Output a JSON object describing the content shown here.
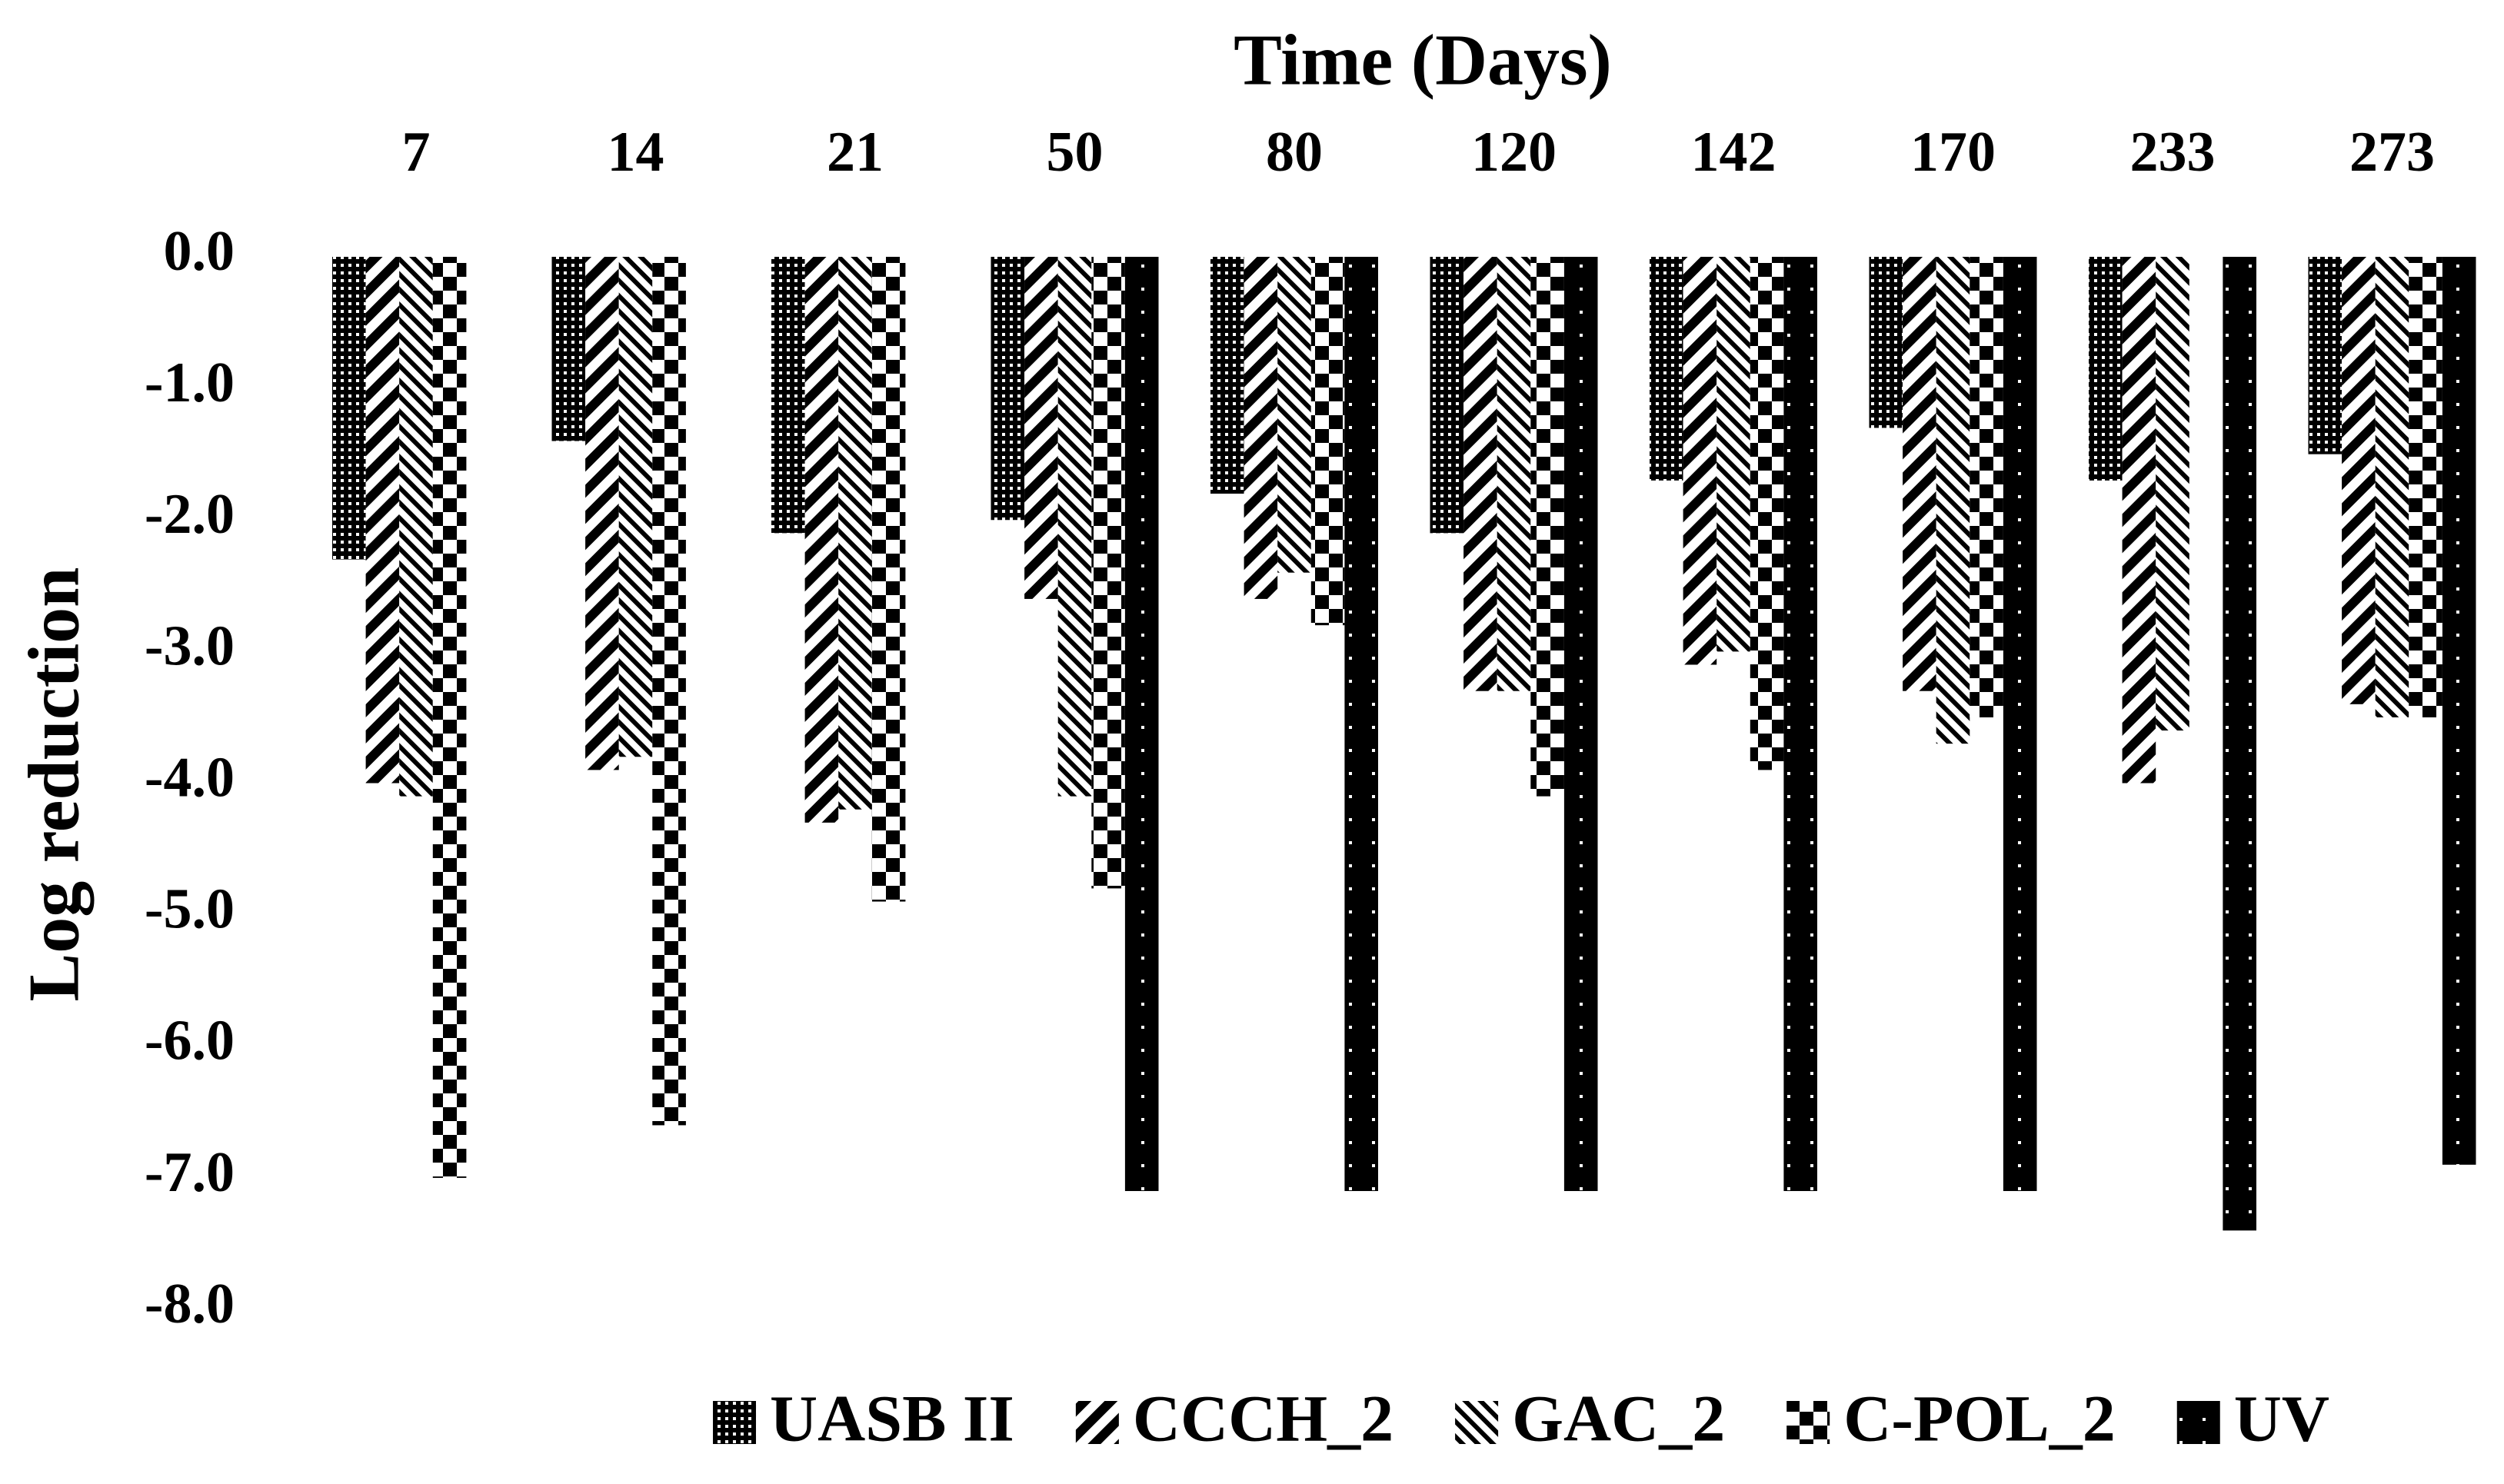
{
  "chart_data": {
    "type": "bar",
    "title": "Time (Days)",
    "y_label": "Log reduction",
    "categories": [
      "7",
      "14",
      "21",
      "50",
      "80",
      "120",
      "142",
      "170",
      "233",
      "273"
    ],
    "series": [
      {
        "name": "UASB II",
        "color": "#000000",
        "values": [
          -2.3,
          -1.4,
          -2.1,
          -2.0,
          -1.8,
          -2.1,
          -1.7,
          -1.3,
          -1.7,
          -1.5
        ]
      },
      {
        "name": "CCCH_2",
        "color": "#000000",
        "values": [
          -4.0,
          -3.9,
          -4.3,
          -2.6,
          -2.6,
          -3.3,
          -3.1,
          -3.3,
          -4.0,
          -3.4
        ]
      },
      {
        "name": "GAC_2",
        "color": "#000000",
        "values": [
          -4.1,
          -3.8,
          -4.2,
          -4.1,
          -2.4,
          -3.3,
          -3.0,
          -3.7,
          -3.6,
          -3.5
        ]
      },
      {
        "name": "C-POL_2",
        "color": "#000000",
        "values": [
          -7.0,
          -6.6,
          -4.9,
          -4.8,
          -2.8,
          -4.1,
          -3.9,
          -3.5,
          null,
          -3.5
        ]
      },
      {
        "name": "UV",
        "color": "#000000",
        "values": [
          null,
          null,
          null,
          -7.1,
          -7.1,
          -7.1,
          -7.1,
          -7.1,
          -7.4,
          -6.9
        ]
      }
    ],
    "ylim": [
      -8,
      0
    ],
    "yticks": [
      {
        "value": 0,
        "label": "0.0"
      },
      {
        "value": -1,
        "label": "-1.0"
      },
      {
        "value": -2,
        "label": "-2.0"
      },
      {
        "value": -3,
        "label": "-3.0"
      },
      {
        "value": -4,
        "label": "-4.0"
      },
      {
        "value": -5,
        "label": "-5.0"
      },
      {
        "value": -6,
        "label": "-6.0"
      },
      {
        "value": -7,
        "label": "-7.0"
      },
      {
        "value": -8,
        "label": "-8.0"
      }
    ],
    "x_axis_position": "top",
    "grid": false
  }
}
